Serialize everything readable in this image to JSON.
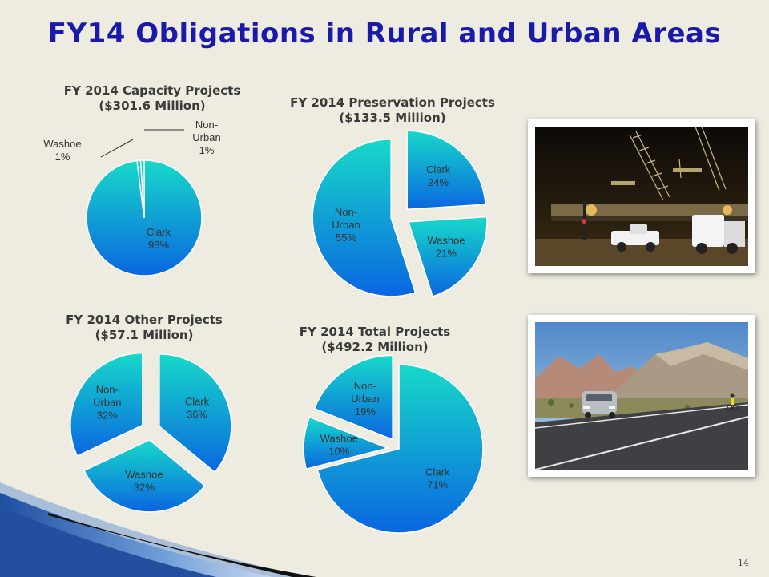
{
  "slide": {
    "title": "FY14 Obligations in Rural and Urban Areas",
    "page_number": "14"
  },
  "colors": {
    "title": "#1a1aa8",
    "pie_light": "#17d9c9",
    "pie_dark": "#0a66e0",
    "background": "#eeece1"
  },
  "photos": [
    {
      "icon": "night-construction-photo"
    },
    {
      "icon": "desert-highway-photo"
    }
  ],
  "chart_data": [
    {
      "id": "capacity",
      "type": "pie",
      "title_line1": "FY 2014 Capacity Projects",
      "title_line2": "($301.6 Million)",
      "slices": [
        {
          "category": "Clark",
          "pct": 98,
          "label_lines": [
            "Clark",
            "98%"
          ],
          "exploded": false
        },
        {
          "category": "Washoe",
          "pct": 1,
          "label_lines": [
            "Washoe",
            "1%"
          ],
          "exploded": false
        },
        {
          "category": "Non-Urban",
          "pct": 1,
          "label_lines": [
            "Non-",
            "Urban",
            "1%"
          ],
          "exploded": false
        }
      ]
    },
    {
      "id": "preservation",
      "type": "pie",
      "title_line1": "FY 2014 Preservation Projects",
      "title_line2": "($133.5 Million)",
      "slices": [
        {
          "category": "Clark",
          "pct": 24,
          "label_lines": [
            "Clark",
            "24%"
          ],
          "exploded": true
        },
        {
          "category": "Washoe",
          "pct": 21,
          "label_lines": [
            "Washoe",
            "21%"
          ],
          "exploded": true
        },
        {
          "category": "Non-Urban",
          "pct": 55,
          "label_lines": [
            "Non-",
            "Urban",
            "55%"
          ],
          "exploded": true
        }
      ]
    },
    {
      "id": "other",
      "type": "pie",
      "title_line1": "FY 2014 Other Projects",
      "title_line2": "($57.1 Million)",
      "slices": [
        {
          "category": "Clark",
          "pct": 36,
          "label_lines": [
            "Clark",
            "36%"
          ],
          "exploded": true
        },
        {
          "category": "Washoe",
          "pct": 32,
          "label_lines": [
            "Washoe",
            "32%"
          ],
          "exploded": true
        },
        {
          "category": "Non-Urban",
          "pct": 32,
          "label_lines": [
            "Non-",
            "Urban",
            "32%"
          ],
          "exploded": true
        }
      ]
    },
    {
      "id": "total",
      "type": "pie",
      "title_line1": "FY 2014 Total Projects",
      "title_line2": "($492.2 Million)",
      "slices": [
        {
          "category": "Clark",
          "pct": 71,
          "label_lines": [
            "Clark",
            "71%"
          ],
          "exploded": false
        },
        {
          "category": "Washoe",
          "pct": 10,
          "label_lines": [
            "Washoe",
            "10%"
          ],
          "exploded": true
        },
        {
          "category": "Non-Urban",
          "pct": 19,
          "label_lines": [
            "Non-",
            "Urban",
            "19%"
          ],
          "exploded": true
        }
      ]
    }
  ]
}
